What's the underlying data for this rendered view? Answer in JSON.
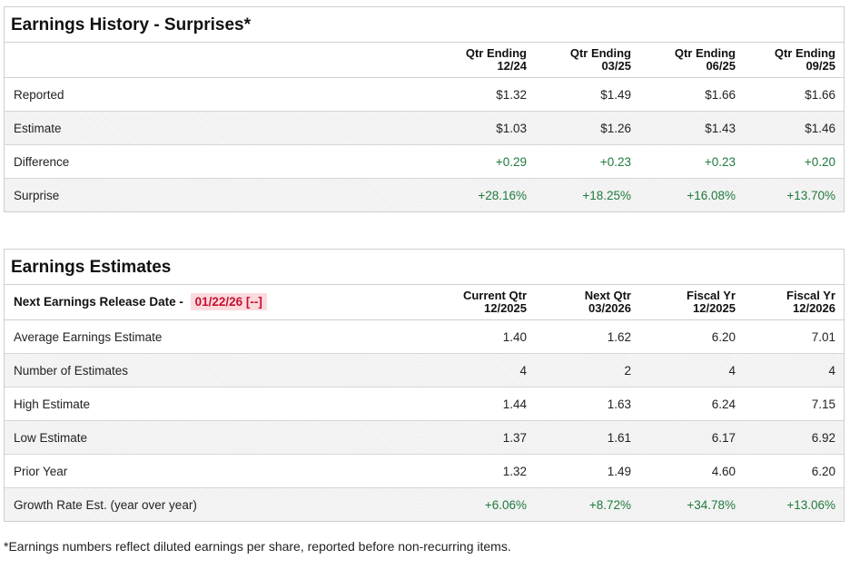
{
  "history": {
    "title": "Earnings History - Surprises*",
    "columns": [
      {
        "line1": "Qtr Ending",
        "line2": "12/24"
      },
      {
        "line1": "Qtr Ending",
        "line2": "03/25"
      },
      {
        "line1": "Qtr Ending",
        "line2": "06/25"
      },
      {
        "line1": "Qtr Ending",
        "line2": "09/25"
      }
    ],
    "rows": [
      {
        "label": "Reported",
        "values": [
          "$1.32",
          "$1.49",
          "$1.66",
          "$1.66"
        ]
      },
      {
        "label": "Estimate",
        "values": [
          "$1.03",
          "$1.26",
          "$1.43",
          "$1.46"
        ]
      },
      {
        "label": "Difference",
        "values": [
          "+0.29",
          "+0.23",
          "+0.23",
          "+0.20"
        ]
      },
      {
        "label": "Surprise",
        "values": [
          "+28.16%",
          "+18.25%",
          "+16.08%",
          "+13.70%"
        ]
      }
    ]
  },
  "estimates": {
    "title": "Earnings Estimates",
    "release_label": "Next Earnings Release Date -",
    "release_date": "01/22/26 [--]",
    "columns": [
      {
        "line1": "Current Qtr",
        "line2": "12/2025"
      },
      {
        "line1": "Next Qtr",
        "line2": "03/2026"
      },
      {
        "line1": "Fiscal Yr",
        "line2": "12/2025"
      },
      {
        "line1": "Fiscal Yr",
        "line2": "12/2026"
      }
    ],
    "rows": [
      {
        "label": "Average Earnings Estimate",
        "values": [
          "1.40",
          "1.62",
          "6.20",
          "7.01"
        ]
      },
      {
        "label": "Number of Estimates",
        "values": [
          "4",
          "2",
          "4",
          "4"
        ]
      },
      {
        "label": "High Estimate",
        "values": [
          "1.44",
          "1.63",
          "6.24",
          "7.15"
        ]
      },
      {
        "label": "Low Estimate",
        "values": [
          "1.37",
          "1.61",
          "6.17",
          "6.92"
        ]
      },
      {
        "label": "Prior Year",
        "values": [
          "1.32",
          "1.49",
          "4.60",
          "6.20"
        ]
      },
      {
        "label": "Growth Rate Est. (year over year)",
        "values": [
          "+6.06%",
          "+8.72%",
          "+34.78%",
          "+13.06%"
        ]
      }
    ]
  },
  "footnote": "*Earnings numbers reflect diluted earnings per share, reported before non-recurring items.",
  "colors": {
    "positive": "#1f7a3c",
    "release_date_text": "#c8102e",
    "release_date_bg": "#fadadd"
  }
}
